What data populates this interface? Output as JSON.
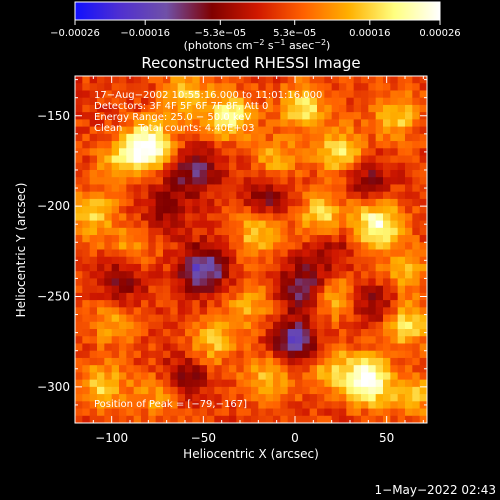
{
  "chart_data": {
    "type": "heatmap",
    "title": "Reconstructed RHESSI Image",
    "xlabel": "Heliocentric X (arcsec)",
    "ylabel": "Heliocentric Y (arcsec)",
    "xlim": [
      -120,
      72
    ],
    "ylim": [
      -320,
      -128
    ],
    "xticks": [
      -100,
      -50,
      0,
      50
    ],
    "xtick_labels": [
      "−100",
      "−50",
      "0",
      "50"
    ],
    "yticks": [
      -150,
      -200,
      -250,
      -300
    ],
    "ytick_labels": [
      "−150",
      "−200",
      "−250",
      "−300"
    ],
    "colorbar": {
      "min": -0.00026,
      "max": 0.00026,
      "ticks": [
        -0.00026,
        -0.00016,
        -5.3e-05,
        5.3e-05,
        0.00016,
        0.00026
      ],
      "tick_labels": [
        "−0.00026",
        "−0.00016",
        "−5.3e−05",
        "5.3e−05",
        "0.00016",
        "0.00026"
      ],
      "stops": [
        "#1010ff",
        "#5030d0",
        "#7050a8",
        "#800000",
        "#d01800",
        "#ff6000",
        "#ffb000",
        "#ffff80",
        "#ffffff"
      ],
      "unit_prefix": "(photons cm",
      "unit_exp1": "−2",
      "unit_mid": " s",
      "unit_exp2": "−1",
      "unit_mid2": " asec",
      "unit_exp3": "−2",
      "unit_suffix": ")"
    },
    "sources": [
      {
        "x": -80,
        "y": -167,
        "value": 0.00026
      },
      {
        "x": -35,
        "y": -150,
        "value": 0.00018
      },
      {
        "x": -60,
        "y": -140,
        "value": 0.00014
      },
      {
        "x": 5,
        "y": -145,
        "value": 0.00016
      },
      {
        "x": 25,
        "y": -170,
        "value": 0.00016
      },
      {
        "x": 55,
        "y": -150,
        "value": 0.00014
      },
      {
        "x": 45,
        "y": -210,
        "value": 0.00022
      },
      {
        "x": 15,
        "y": -205,
        "value": 0.00015
      },
      {
        "x": -110,
        "y": -205,
        "value": 0.00014
      },
      {
        "x": -95,
        "y": -175,
        "value": 0.00012
      },
      {
        "x": -90,
        "y": -225,
        "value": 0.00011
      },
      {
        "x": -20,
        "y": -215,
        "value": 0.00014
      },
      {
        "x": -25,
        "y": -255,
        "value": 0.00011
      },
      {
        "x": -45,
        "y": -275,
        "value": 0.00013
      },
      {
        "x": 20,
        "y": -250,
        "value": 0.00014
      },
      {
        "x": 20,
        "y": -290,
        "value": 0.00013
      },
      {
        "x": 40,
        "y": -297,
        "value": 0.00025
      },
      {
        "x": 60,
        "y": -265,
        "value": 0.00017
      },
      {
        "x": -100,
        "y": -265,
        "value": 0.0001
      },
      {
        "x": -105,
        "y": -300,
        "value": 0.00014
      },
      {
        "x": -75,
        "y": -305,
        "value": 0.0001
      },
      {
        "x": -15,
        "y": -295,
        "value": 0.00013
      },
      {
        "x": 65,
        "y": -305,
        "value": 0.00012
      },
      {
        "x": -10,
        "y": -175,
        "value": 0.00012
      },
      {
        "x": 60,
        "y": -235,
        "value": 0.00012
      },
      {
        "x": -70,
        "y": -200,
        "value": -8e-05
      },
      {
        "x": -50,
        "y": -235,
        "value": -0.00018
      },
      {
        "x": 5,
        "y": -245,
        "value": -0.00015
      },
      {
        "x": 0,
        "y": -275,
        "value": -0.00016
      },
      {
        "x": -55,
        "y": -180,
        "value": -0.00012
      },
      {
        "x": -15,
        "y": -195,
        "value": -9e-05
      },
      {
        "x": 40,
        "y": -185,
        "value": -8e-05
      },
      {
        "x": -95,
        "y": -240,
        "value": -0.0001
      },
      {
        "x": 45,
        "y": -255,
        "value": -9e-05
      },
      {
        "x": -60,
        "y": -295,
        "value": -9e-05
      },
      {
        "x": 20,
        "y": -225,
        "value": -6e-05
      }
    ]
  },
  "annotations": {
    "time_range": "17−Aug−2002 10:55:16.000 to 11:01:16.000",
    "detectors": "Detectors: 3F 4F 5F 6F 7F 8F, Att 0",
    "energy": "Energy Range: 25.0 − 50.0 keV",
    "clean": "Clean     Total counts: 4.40E+03",
    "peak": "Position of Peak = [−79,−167]"
  },
  "footer": {
    "timestamp": "1−May−2022 02:43"
  }
}
